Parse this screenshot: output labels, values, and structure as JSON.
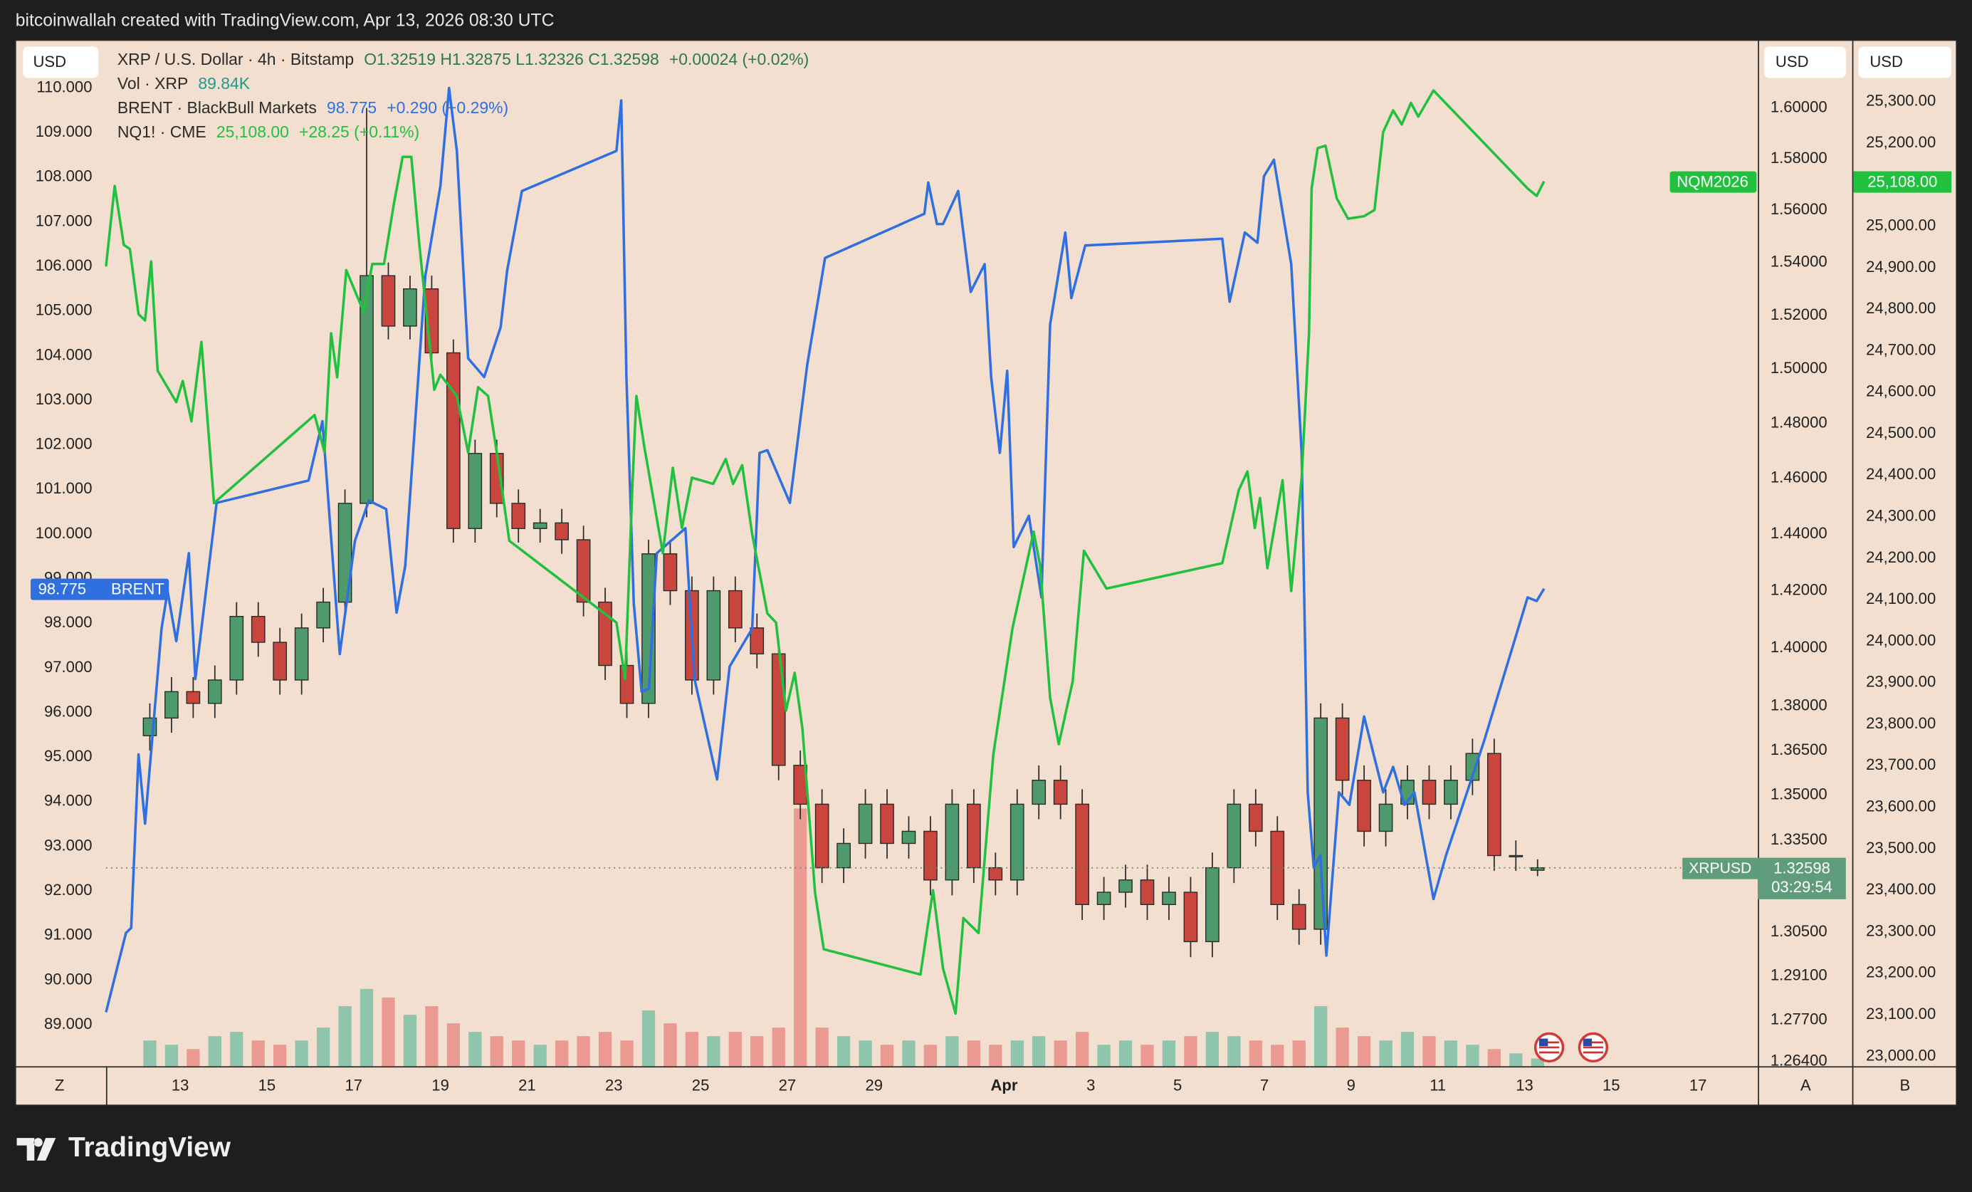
{
  "header": {
    "credit": "bitcoinwallah created with TradingView.com, Apr 13, 2026 08:30 UTC"
  },
  "footer": {
    "brand": "TradingView"
  },
  "scale_labels": {
    "currency": "USD",
    "left_scale": "Z",
    "scale_a": "A",
    "scale_b": "B"
  },
  "chart_data": {
    "type": "candlestick",
    "xlim": [
      11.29,
      49.38
    ],
    "xticks": [
      13,
      15,
      17,
      19,
      21,
      23,
      25,
      27,
      29,
      {
        "value": 32,
        "label": "Apr"
      },
      {
        "value": 34,
        "label": "3"
      },
      {
        "value": 36,
        "label": "5"
      },
      {
        "value": 38,
        "label": "7"
      },
      {
        "value": 40,
        "label": "9"
      },
      {
        "value": 42,
        "label": "11"
      },
      {
        "value": 44,
        "label": "13"
      },
      {
        "value": 46,
        "label": "15"
      },
      {
        "value": 48,
        "label": "17"
      }
    ],
    "ylim": [
      88.07,
      111.07
    ],
    "yticks": [
      {
        "value": 89,
        "label": "89.000"
      },
      {
        "value": 90,
        "label": "90.000"
      },
      {
        "value": 91,
        "label": "91.000"
      },
      {
        "value": 92,
        "label": "92.000"
      },
      {
        "value": 93,
        "label": "93.000"
      },
      {
        "value": 94,
        "label": "94.000"
      },
      {
        "value": 95,
        "label": "95.000"
      },
      {
        "value": 96,
        "label": "96.000"
      },
      {
        "value": 97,
        "label": "97.000"
      },
      {
        "value": 98,
        "label": "98.000"
      },
      {
        "value": 99,
        "label": "99.000"
      },
      {
        "value": 100,
        "label": "100.000"
      },
      {
        "value": 101,
        "label": "101.000"
      },
      {
        "value": 102,
        "label": "102.000"
      },
      {
        "value": 103,
        "label": "103.000"
      },
      {
        "value": 104,
        "label": "104.000"
      },
      {
        "value": 105,
        "label": "105.000"
      },
      {
        "value": 106,
        "label": "106.000"
      },
      {
        "value": 107,
        "label": "107.000"
      },
      {
        "value": 108,
        "label": "108.000"
      },
      {
        "value": 109,
        "label": "109.000"
      },
      {
        "value": 110,
        "label": "110.000"
      }
    ],
    "y2lim": [
      1.2625,
      1.627
    ],
    "y2_log": true,
    "y2ticks": [
      {
        "value": 1.264,
        "label": "1.26400"
      },
      {
        "value": 1.277,
        "label": "1.27700"
      },
      {
        "value": 1.291,
        "label": "1.29100"
      },
      {
        "value": 1.305,
        "label": "1.30500"
      },
      {
        "value": 1.335,
        "label": "1.33500"
      },
      {
        "value": 1.35,
        "label": "1.35000"
      },
      {
        "value": 1.365,
        "label": "1.36500"
      },
      {
        "value": 1.38,
        "label": "1.38000"
      },
      {
        "value": 1.4,
        "label": "1.40000"
      },
      {
        "value": 1.42,
        "label": "1.42000"
      },
      {
        "value": 1.44,
        "label": "1.44000"
      },
      {
        "value": 1.46,
        "label": "1.46000"
      },
      {
        "value": 1.48,
        "label": "1.48000"
      },
      {
        "value": 1.5,
        "label": "1.50000"
      },
      {
        "value": 1.52,
        "label": "1.52000"
      },
      {
        "value": 1.54,
        "label": "1.54000"
      },
      {
        "value": 1.56,
        "label": "1.56000"
      },
      {
        "value": 1.58,
        "label": "1.58000"
      },
      {
        "value": 1.6,
        "label": "1.60000"
      }
    ],
    "y3lim": [
      22976,
      25448
    ],
    "y3ticks": [
      {
        "value": 23000,
        "label": "23,000.00"
      },
      {
        "value": 23100,
        "label": "23,100.00"
      },
      {
        "value": 23200,
        "label": "23,200.00"
      },
      {
        "value": 23300,
        "label": "23,300.00"
      },
      {
        "value": 23400,
        "label": "23,400.00"
      },
      {
        "value": 23500,
        "label": "23,500.00"
      },
      {
        "value": 23600,
        "label": "23,600.00"
      },
      {
        "value": 23700,
        "label": "23,700.00"
      },
      {
        "value": 23800,
        "label": "23,800.00"
      },
      {
        "value": 23900,
        "label": "23,900.00"
      },
      {
        "value": 24000,
        "label": "24,000.00"
      },
      {
        "value": 24100,
        "label": "24,100.00"
      },
      {
        "value": 24200,
        "label": "24,200.00"
      },
      {
        "value": 24300,
        "label": "24,300.00"
      },
      {
        "value": 24400,
        "label": "24,400.00"
      },
      {
        "value": 24500,
        "label": "24,500.00"
      },
      {
        "value": 24600,
        "label": "24,600.00"
      },
      {
        "value": 24700,
        "label": "24,700.00"
      },
      {
        "value": 24800,
        "label": "24,800.00"
      },
      {
        "value": 24900,
        "label": "24,900.00"
      },
      {
        "value": 25000,
        "label": "25,000.00"
      },
      {
        "value": 25100,
        "label": "25,100.00"
      },
      {
        "value": 25200,
        "label": "25,200.00"
      },
      {
        "value": 25300,
        "label": "25,300.00"
      }
    ],
    "grid": false,
    "series": [
      {
        "name": "XRP / U.S. Dollar · 4h · Bitstamp",
        "type": "candlestick",
        "axis": "y2",
        "legend_values": "O1.32519 H1.32875 L1.32326 C1.32598",
        "change": "+0.00024 (+0.02%)",
        "tag": "XRPUSD",
        "countdown": "03:29:54",
        "up_color": "#4e9a6c",
        "down_color": "#c8463e",
        "x": [
          12.3,
          12.8,
          13.3,
          13.8,
          14.3,
          14.8,
          15.3,
          15.8,
          16.3,
          16.8,
          17.3,
          17.8,
          18.3,
          18.8,
          19.3,
          19.8,
          20.3,
          20.8,
          21.3,
          21.8,
          22.3,
          22.8,
          23.3,
          23.8,
          24.3,
          24.8,
          25.3,
          25.8,
          26.3,
          26.8,
          27.3,
          27.8,
          28.3,
          28.8,
          29.3,
          29.8,
          30.3,
          30.8,
          31.3,
          31.8,
          32.3,
          32.8,
          33.3,
          33.8,
          34.3,
          34.8,
          35.3,
          35.8,
          36.3,
          36.8,
          37.3,
          37.8,
          38.3,
          38.8,
          39.3,
          39.8,
          40.3,
          40.8,
          41.3,
          41.8,
          42.3,
          42.8,
          43.3,
          43.8,
          44.3
        ],
        "open": [
          1.37,
          1.376,
          1.385,
          1.381,
          1.389,
          1.411,
          1.402,
          1.389,
          1.407,
          1.416,
          1.451,
          1.535,
          1.516,
          1.53,
          1.506,
          1.442,
          1.469,
          1.451,
          1.442,
          1.444,
          1.438,
          1.416,
          1.394,
          1.381,
          1.433,
          1.42,
          1.389,
          1.42,
          1.407,
          1.398,
          1.36,
          1.347,
          1.326,
          1.334,
          1.347,
          1.334,
          1.338,
          1.322,
          1.347,
          1.326,
          1.322,
          1.347,
          1.355,
          1.347,
          1.314,
          1.318,
          1.322,
          1.314,
          1.318,
          1.302,
          1.326,
          1.347,
          1.338,
          1.314,
          1.306,
          1.376,
          1.355,
          1.338,
          1.347,
          1.355,
          1.347,
          1.355,
          1.364,
          1.33,
          1.32519
        ],
        "high": [
          1.381,
          1.39,
          1.39,
          1.394,
          1.416,
          1.416,
          1.407,
          1.412,
          1.421,
          1.456,
          1.6,
          1.54,
          1.535,
          1.535,
          1.511,
          1.474,
          1.474,
          1.456,
          1.449,
          1.449,
          1.443,
          1.421,
          1.399,
          1.438,
          1.438,
          1.425,
          1.425,
          1.425,
          1.412,
          1.403,
          1.365,
          1.352,
          1.339,
          1.352,
          1.352,
          1.343,
          1.343,
          1.352,
          1.352,
          1.331,
          1.352,
          1.36,
          1.36,
          1.352,
          1.323,
          1.327,
          1.327,
          1.323,
          1.323,
          1.331,
          1.352,
          1.352,
          1.343,
          1.319,
          1.381,
          1.381,
          1.36,
          1.352,
          1.36,
          1.36,
          1.36,
          1.369,
          1.369,
          1.335,
          1.32875
        ],
        "low": [
          1.365,
          1.371,
          1.376,
          1.376,
          1.384,
          1.397,
          1.384,
          1.384,
          1.402,
          1.411,
          1.446,
          1.511,
          1.511,
          1.501,
          1.437,
          1.437,
          1.446,
          1.437,
          1.437,
          1.433,
          1.411,
          1.389,
          1.376,
          1.376,
          1.415,
          1.384,
          1.384,
          1.402,
          1.393,
          1.355,
          1.342,
          1.321,
          1.321,
          1.329,
          1.329,
          1.329,
          1.317,
          1.317,
          1.321,
          1.317,
          1.317,
          1.342,
          1.342,
          1.309,
          1.309,
          1.313,
          1.309,
          1.309,
          1.297,
          1.297,
          1.321,
          1.333,
          1.309,
          1.301,
          1.301,
          1.35,
          1.333,
          1.333,
          1.342,
          1.342,
          1.342,
          1.35,
          1.325,
          1.325,
          1.32326
        ],
        "close": [
          1.376,
          1.385,
          1.381,
          1.389,
          1.411,
          1.402,
          1.389,
          1.407,
          1.416,
          1.451,
          1.535,
          1.516,
          1.53,
          1.506,
          1.442,
          1.469,
          1.451,
          1.442,
          1.444,
          1.438,
          1.416,
          1.394,
          1.381,
          1.433,
          1.42,
          1.389,
          1.42,
          1.407,
          1.398,
          1.36,
          1.347,
          1.326,
          1.334,
          1.347,
          1.334,
          1.338,
          1.322,
          1.347,
          1.326,
          1.322,
          1.347,
          1.355,
          1.347,
          1.314,
          1.318,
          1.322,
          1.314,
          1.318,
          1.302,
          1.326,
          1.347,
          1.338,
          1.314,
          1.306,
          1.376,
          1.355,
          1.338,
          1.347,
          1.355,
          1.347,
          1.355,
          1.364,
          1.33,
          1.33,
          1.32598
        ]
      },
      {
        "name": "Vol · XRP",
        "type": "bar",
        "legend_value": "89.84K",
        "up_color": "#8fc4ad",
        "down_color": "#eb9a91",
        "values": [
          300,
          250,
          200,
          350,
          400,
          300,
          250,
          300,
          450,
          700,
          900,
          800,
          600,
          700,
          500,
          400,
          350,
          300,
          250,
          300,
          350,
          400,
          300,
          650,
          500,
          400,
          350,
          400,
          350,
          450,
          3000,
          450,
          350,
          300,
          250,
          300,
          250,
          350,
          300,
          250,
          300,
          350,
          300,
          400,
          250,
          300,
          250,
          300,
          350,
          400,
          350,
          300,
          250,
          300,
          700,
          450,
          350,
          300,
          400,
          350,
          300,
          250,
          200,
          150,
          89.84
        ]
      },
      {
        "name": "BRENT · BlackBull Markets",
        "type": "line",
        "axis": "y",
        "color": "#2f6fe0",
        "legend_value": "98.775",
        "change": "+0.290 (+0.29%)",
        "tag": "BRENT",
        "x": [
          11.29,
          11.75,
          11.87,
          12.04,
          12.19,
          12.57,
          12.71,
          12.91,
          13.2,
          13.35,
          13.84,
          15.96,
          16.28,
          16.68,
          17.03,
          17.35,
          17.75,
          17.99,
          18.19,
          18.65,
          19.0,
          19.2,
          19.38,
          19.64,
          20.01,
          20.39,
          20.54,
          20.88,
          23.06,
          23.17,
          23.29,
          23.46,
          23.64,
          23.81,
          23.99,
          24.65,
          24.86,
          25.38,
          25.67,
          26.19,
          26.36,
          26.54,
          27.06,
          27.46,
          27.87,
          30.16,
          30.25,
          30.45,
          30.59,
          30.94,
          31.23,
          31.55,
          31.7,
          31.9,
          32.07,
          32.22,
          32.57,
          32.86,
          33.06,
          33.41,
          33.55,
          33.87,
          37.03,
          37.2,
          37.55,
          37.84,
          37.99,
          38.22,
          38.62,
          38.86,
          39.0,
          39.14,
          39.29,
          39.43,
          39.72,
          39.96,
          40.3,
          40.74,
          40.97,
          41.23,
          41.46,
          41.9,
          42.19,
          43.06,
          44.07,
          44.28,
          44.45
        ],
        "values": [
          89.28,
          91.06,
          91.17,
          95.06,
          93.51,
          97.88,
          98.72,
          97.6,
          99.57,
          96.75,
          100.7,
          101.2,
          102.53,
          97.31,
          99.85,
          100.75,
          100.56,
          98.24,
          99.29,
          105.77,
          107.8,
          110.0,
          108.59,
          103.94,
          103.52,
          104.64,
          105.91,
          107.69,
          108.59,
          109.72,
          103.52,
          98.44,
          96.47,
          96.53,
          99.57,
          100.13,
          96.75,
          94.5,
          97.03,
          97.88,
          101.82,
          101.88,
          100.7,
          103.8,
          106.19,
          107.18,
          107.88,
          106.95,
          106.95,
          107.69,
          105.43,
          106.05,
          103.52,
          101.82,
          103.66,
          99.71,
          100.41,
          98.58,
          104.7,
          106.76,
          105.29,
          106.47,
          106.62,
          105.21,
          106.76,
          106.53,
          108.02,
          108.39,
          106.05,
          101.82,
          94.21,
          92.52,
          92.8,
          90.55,
          94.21,
          93.93,
          95.91,
          94.21,
          94.78,
          93.93,
          94.21,
          91.82,
          92.8,
          95.34,
          98.58,
          98.5,
          98.775
        ]
      },
      {
        "name": "NQ1! · CME",
        "type": "line",
        "axis": "y3",
        "color": "#22c03f",
        "legend_value": "25,108.00",
        "change": "+28.25 (+0.11%)",
        "tag": "NQM2026",
        "x": [
          11.29,
          11.49,
          11.7,
          11.84,
          12.04,
          12.19,
          12.33,
          12.48,
          12.91,
          13.06,
          13.26,
          13.49,
          13.78,
          16.1,
          16.33,
          16.48,
          16.62,
          16.83,
          17.23,
          17.43,
          17.7,
          17.93,
          18.13,
          18.33,
          18.51,
          18.86,
          19.0,
          19.38,
          19.64,
          19.87,
          20.1,
          20.3,
          20.59,
          23.06,
          23.26,
          23.43,
          23.52,
          23.7,
          24.13,
          24.36,
          24.57,
          24.8,
          25.29,
          25.58,
          25.75,
          25.96,
          26.19,
          26.54,
          26.74,
          26.97,
          27.17,
          27.35,
          27.64,
          27.84,
          30.07,
          30.36,
          30.59,
          30.88,
          31.06,
          31.41,
          31.75,
          32.19,
          32.68,
          32.83,
          33.06,
          33.26,
          33.58,
          33.84,
          34.36,
          37.03,
          37.41,
          37.61,
          37.78,
          37.9,
          38.07,
          38.42,
          38.62,
          38.86,
          39.03,
          39.09,
          39.23,
          39.41,
          39.67,
          39.93,
          40.3,
          40.54,
          40.74,
          40.97,
          41.17,
          41.38,
          41.55,
          41.9,
          44.07,
          44.28,
          44.45
        ],
        "values": [
          24903,
          25097,
          24955,
          24945,
          24788,
          24773,
          24915,
          24652,
          24576,
          24627,
          24530,
          24721,
          24333,
          24545,
          24455,
          24742,
          24636,
          24894,
          24794,
          24909,
          24909,
          25055,
          25167,
          25167,
          24961,
          24606,
          24642,
          24591,
          24455,
          24612,
          24591,
          24455,
          24242,
          24045,
          23909,
          24379,
          24591,
          24470,
          24212,
          24418,
          24273,
          24394,
          24379,
          24439,
          24379,
          24424,
          24258,
          24067,
          24045,
          23833,
          23924,
          23788,
          23394,
          23258,
          23197,
          23400,
          23212,
          23103,
          23333,
          23297,
          23727,
          24030,
          24264,
          24182,
          23864,
          23752,
          23903,
          24218,
          24127,
          24188,
          24364,
          24409,
          24273,
          24345,
          24176,
          24388,
          24121,
          24394,
          24742,
          25091,
          25188,
          25194,
          25067,
          25018,
          25024,
          25039,
          25227,
          25279,
          25245,
          25297,
          25264,
          25327,
          25091,
          25073,
          25108
        ]
      }
    ]
  }
}
